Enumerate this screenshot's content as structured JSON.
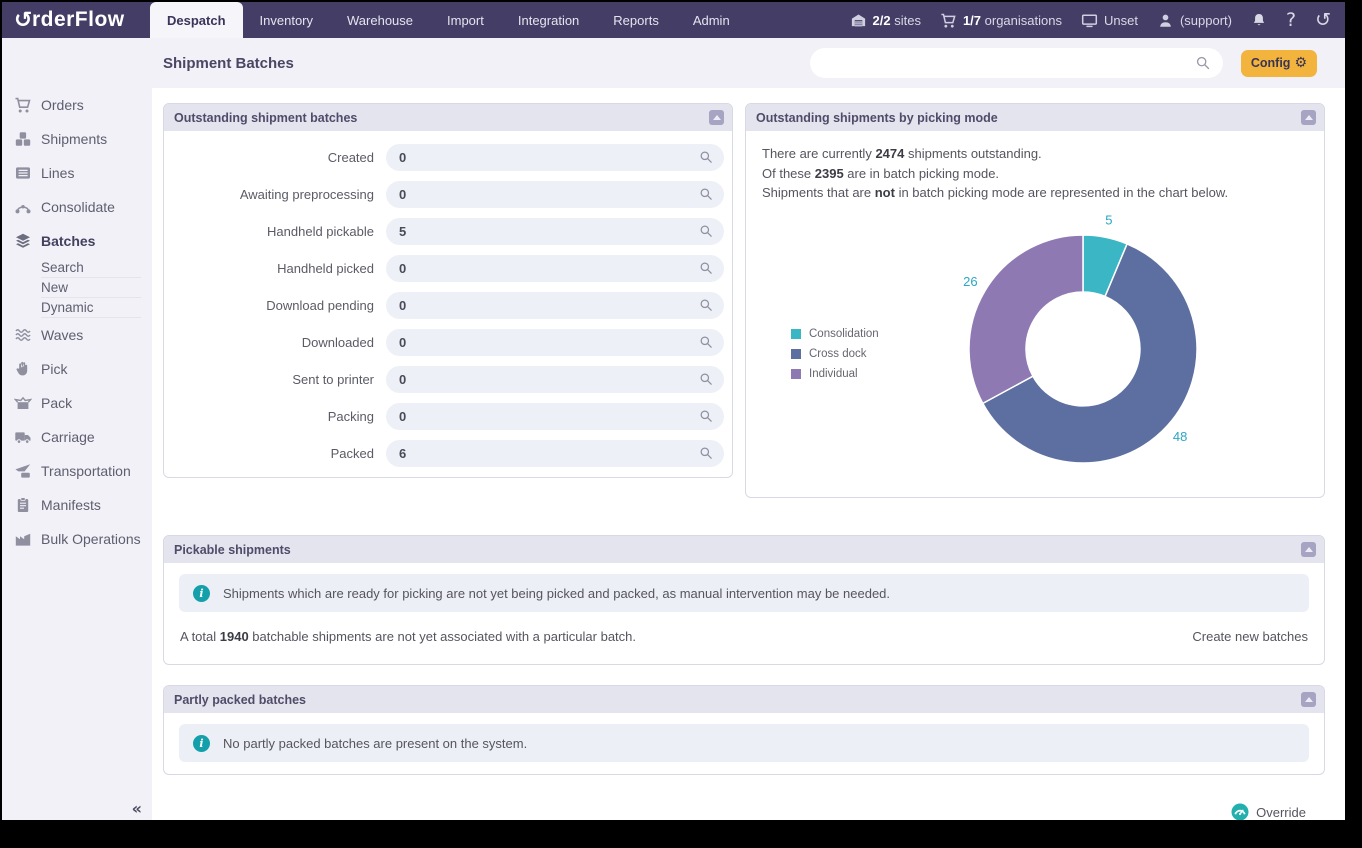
{
  "topbar": {
    "logo": {
      "name": "OrderFlow",
      "display_rest": "rderFlow",
      "icon": "rotate-o-icon"
    },
    "tabs": [
      {
        "label": "Despatch",
        "active": true
      },
      {
        "label": "Inventory",
        "active": false
      },
      {
        "label": "Warehouse",
        "active": false
      },
      {
        "label": "Import",
        "active": false
      },
      {
        "label": "Integration",
        "active": false
      },
      {
        "label": "Reports",
        "active": false
      },
      {
        "label": "Admin",
        "active": false
      }
    ],
    "status": [
      {
        "icon": "garage-icon",
        "bold": "2/2",
        "label": "sites"
      },
      {
        "icon": "cart-icon",
        "bold": "1/7",
        "label": "organisations"
      },
      {
        "icon": "monitor-icon",
        "bold": "",
        "label": "Unset"
      },
      {
        "icon": "person-icon",
        "bold": "",
        "label": "(support)"
      }
    ],
    "action_icons": [
      {
        "icon": "bell-icon",
        "glyph": ""
      },
      {
        "icon": "help-icon",
        "glyph": "?"
      },
      {
        "icon": "history-icon",
        "glyph": "↺"
      }
    ]
  },
  "header": {
    "title": "Shipment Batches",
    "search_value": "",
    "config_label": "Config",
    "config_gear_glyph": "⚙"
  },
  "sidebar": {
    "items": [
      {
        "icon": "cart-icon",
        "label": "Orders",
        "active": false
      },
      {
        "icon": "shipments-icon",
        "label": "Shipments",
        "active": false
      },
      {
        "icon": "lines-icon",
        "label": "Lines",
        "active": false
      },
      {
        "icon": "consolidate-icon",
        "label": "Consolidate",
        "active": false
      },
      {
        "icon": "batches-icon",
        "label": "Batches",
        "active": true,
        "children": [
          "Search",
          "New",
          "Dynamic"
        ]
      },
      {
        "icon": "waves-icon",
        "label": "Waves",
        "active": false
      },
      {
        "icon": "pick-icon",
        "label": "Pick",
        "active": false
      },
      {
        "icon": "pack-icon",
        "label": "Pack",
        "active": false
      },
      {
        "icon": "carriage-icon",
        "label": "Carriage",
        "active": false
      },
      {
        "icon": "transportation-icon",
        "label": "Transportation",
        "active": false
      },
      {
        "icon": "manifests-icon",
        "label": "Manifests",
        "active": false
      },
      {
        "icon": "bulk-icon",
        "label": "Bulk Operations",
        "active": false
      }
    ],
    "collapse_glyph": "«"
  },
  "panels": {
    "outstanding": {
      "title": "Outstanding shipment batches",
      "rows": [
        {
          "label": "Created",
          "value": "0"
        },
        {
          "label": "Awaiting preprocessing",
          "value": "0"
        },
        {
          "label": "Handheld pickable",
          "value": "5"
        },
        {
          "label": "Handheld picked",
          "value": "0"
        },
        {
          "label": "Download pending",
          "value": "0"
        },
        {
          "label": "Downloaded",
          "value": "0"
        },
        {
          "label": "Sent to printer",
          "value": "0"
        },
        {
          "label": "Packing",
          "value": "0"
        },
        {
          "label": "Packed",
          "value": "6"
        }
      ]
    },
    "picking_mode": {
      "title": "Outstanding shipments by picking mode",
      "lines": [
        {
          "pre": "There are currently ",
          "bold": "2474",
          "post": " shipments outstanding."
        },
        {
          "pre": "Of these ",
          "bold": "2395",
          "post": " are in batch picking mode."
        },
        {
          "pre": "Shipments that are ",
          "bold": "not",
          "post": " in batch picking mode are represented in the chart below."
        }
      ]
    },
    "pickable": {
      "title": "Pickable shipments",
      "alert": "Shipments which are ready for picking are not yet being picked and packed, as manual intervention may be needed.",
      "total_line": {
        "pre": "A total ",
        "bold": "1940",
        "post": " batchable shipments are not yet associated with a particular batch."
      },
      "action": "Create new batches"
    },
    "partly_packed": {
      "title": "Partly packed batches",
      "alert": "No partly packed batches are present on the system."
    }
  },
  "chart_data": {
    "type": "pie",
    "donut": true,
    "labels": [
      "Consolidation",
      "Cross dock",
      "Individual"
    ],
    "values": [
      5,
      48,
      26
    ],
    "total": 79,
    "colors": [
      "#3ab6c5",
      "#5c6fa0",
      "#8e79b2"
    ],
    "data_label_color": "#2ba6c5",
    "legend_position": "left",
    "start_angle_deg": 0,
    "direction": "clockwise"
  },
  "footer": {
    "override_label": "Override",
    "override_icon": "gauge-icon"
  },
  "colors": {
    "topbar": "#443e66",
    "accent_yellow": "#f2b43d",
    "teal_info": "#13a0ab",
    "panel_header": "#e4e4ef",
    "field_bg": "#eef0f7"
  }
}
